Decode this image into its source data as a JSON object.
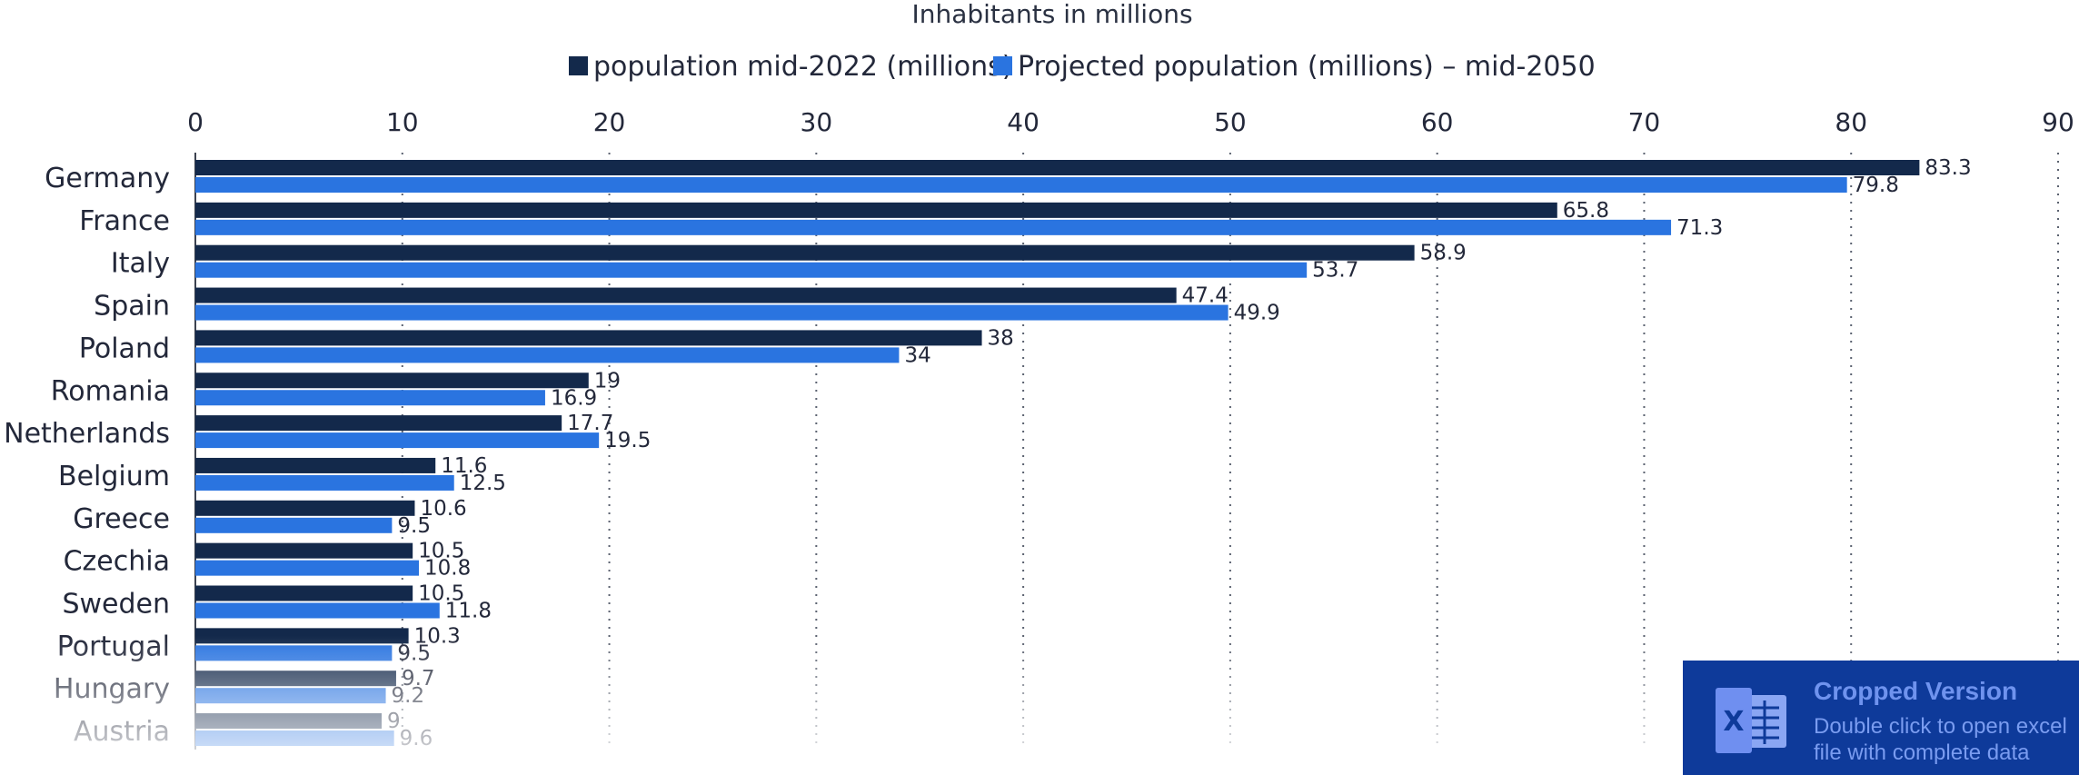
{
  "chart_data": {
    "type": "bar",
    "orientation": "horizontal",
    "title": "Inhabitants in millions",
    "categories": [
      "Germany",
      "France",
      "Italy",
      "Spain",
      "Poland",
      "Romania",
      "Netherlands",
      "Belgium",
      "Greece",
      "Czechia",
      "Sweden",
      "Portugal",
      "Hungary",
      "Austria"
    ],
    "series": [
      {
        "name": "population mid-2022 (millions)",
        "color": "#13294b",
        "values": [
          83.3,
          65.8,
          58.9,
          47.4,
          38,
          19,
          17.7,
          11.6,
          10.6,
          10.5,
          10.5,
          10.3,
          9.7,
          9
        ]
      },
      {
        "name": "Projected population (millions) – mid-2050",
        "color": "#2a74e0",
        "values": [
          79.8,
          71.3,
          53.7,
          49.9,
          34,
          16.9,
          19.5,
          12.5,
          9.5,
          10.8,
          11.8,
          9.5,
          9.2,
          9.6
        ]
      }
    ],
    "xlim": [
      0,
      90
    ],
    "xticks": [
      0,
      10,
      20,
      30,
      40,
      50,
      60,
      70,
      80,
      90
    ],
    "grid": true,
    "legend_position": "top"
  },
  "banner": {
    "title": "Cropped Version",
    "subtitle": "Double click to open excel file with complete data",
    "icon": "excel-icon",
    "icon_letter": "X"
  },
  "colors": {
    "banner_bg": "#0e3a9a"
  }
}
